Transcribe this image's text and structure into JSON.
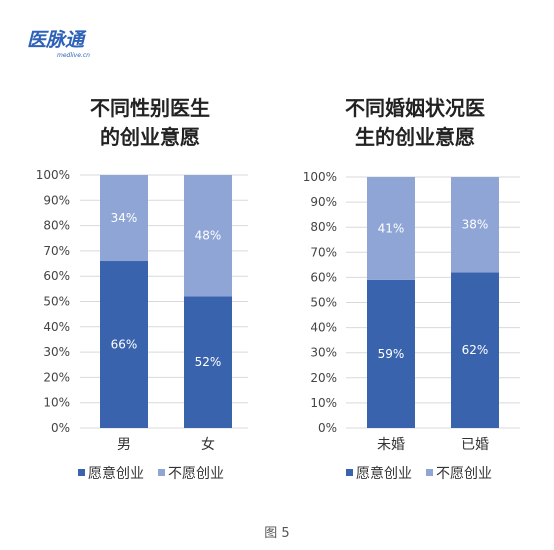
{
  "logo": {
    "text": "医脉通",
    "sub": "medlive.cn"
  },
  "caption": "图 5",
  "colors": {
    "willing": "#3a63ad",
    "unwilling": "#8ea5d6",
    "grid": "#d9d9d9"
  },
  "chart_data": [
    {
      "type": "bar",
      "stacked": true,
      "percent_stacked": true,
      "title": "不同性别医生\n的创业意愿",
      "categories": [
        "男",
        "女"
      ],
      "series": [
        {
          "name": "愿意创业",
          "values": [
            66,
            52
          ],
          "labels": [
            "66%",
            "52%"
          ]
        },
        {
          "name": "不愿创业",
          "values": [
            34,
            48
          ],
          "labels": [
            "34%",
            "48%"
          ]
        }
      ],
      "ylim": [
        0,
        100
      ],
      "yticks": [
        "0%",
        "10%",
        "20%",
        "30%",
        "40%",
        "50%",
        "60%",
        "70%",
        "80%",
        "90%",
        "100%"
      ],
      "grid": true,
      "legend": "bottom"
    },
    {
      "type": "bar",
      "stacked": true,
      "percent_stacked": true,
      "title": "不同婚姻状况医\n生的创业意愿",
      "categories": [
        "未婚",
        "已婚"
      ],
      "series": [
        {
          "name": "愿意创业",
          "values": [
            59,
            62
          ],
          "labels": [
            "59%",
            "62%"
          ]
        },
        {
          "name": "不愿创业",
          "values": [
            41,
            38
          ],
          "labels": [
            "41%",
            "38%"
          ]
        }
      ],
      "ylim": [
        0,
        100
      ],
      "yticks": [
        "0%",
        "10%",
        "20%",
        "30%",
        "40%",
        "50%",
        "60%",
        "70%",
        "80%",
        "90%",
        "100%"
      ],
      "grid": true,
      "legend": "bottom"
    }
  ]
}
